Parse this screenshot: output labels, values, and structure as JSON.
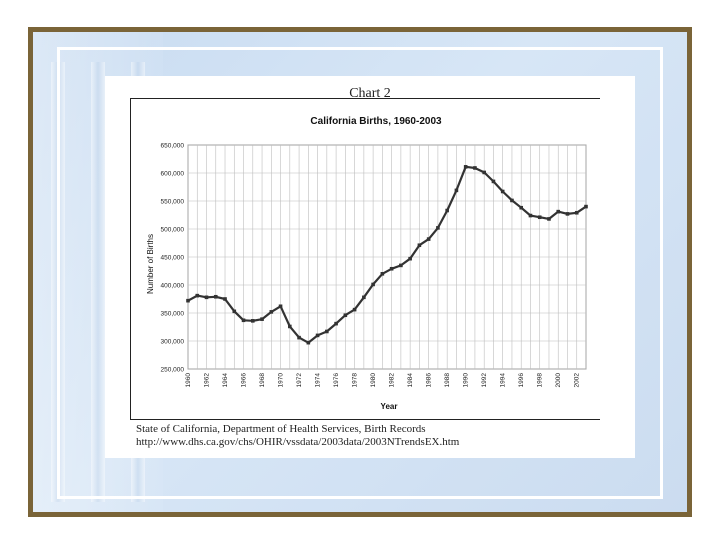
{
  "slide": {
    "title": "Chart 2",
    "source_line1": "State of California, Department of Health Services, Birth Records",
    "source_line2": "http://www.dhs.ca.gov/chs/OHIR/vssdata/2003data/2003NTrendsEX.htm"
  },
  "colors": {
    "frame": "#7a6438",
    "background": "#cfe0f3",
    "line": "#333333",
    "grid": "#bdbdbd"
  },
  "chart_data": {
    "type": "line",
    "title": "California Births, 1960-2003",
    "xlabel": "Year",
    "ylabel": "Number of Births",
    "ylim": [
      250000,
      650000
    ],
    "xlim": [
      1960,
      2003
    ],
    "grid": true,
    "y_ticks": [
      "650,000",
      "600,000",
      "550,000",
      "500,000",
      "450,000",
      "400,000",
      "350,000",
      "300,000",
      "250,000"
    ],
    "x_ticks": [
      "1960",
      "1962",
      "1964",
      "1966",
      "1968",
      "1970",
      "1972",
      "1974",
      "1976",
      "1978",
      "1980",
      "1982",
      "1984",
      "1986",
      "1988",
      "1990",
      "1992",
      "1994",
      "1996",
      "1998",
      "2000",
      "2002"
    ],
    "series": [
      {
        "x": [
          1960,
          1961,
          1962,
          1963,
          1964,
          1965,
          1966,
          1967,
          1968,
          1969,
          1970,
          1971,
          1972,
          1973,
          1974,
          1975,
          1976,
          1977,
          1978,
          1979,
          1980,
          1981,
          1982,
          1983,
          1984,
          1985,
          1986,
          1987,
          1988,
          1989,
          1990,
          1991,
          1992,
          1993,
          1994,
          1995,
          1996,
          1997,
          1998,
          1999,
          2000,
          2001,
          2002,
          2003
        ],
        "values": [
          372000,
          381000,
          378000,
          379000,
          375000,
          353000,
          337000,
          336000,
          339000,
          352000,
          362000,
          326000,
          306000,
          297000,
          310000,
          317000,
          331000,
          346000,
          356000,
          378000,
          401000,
          420000,
          429000,
          435000,
          447000,
          471000,
          482000,
          502000,
          533000,
          569000,
          611000,
          609000,
          601000,
          585000,
          567000,
          551000,
          538000,
          524000,
          521000,
          518000,
          531000,
          527000,
          529000,
          540000
        ]
      }
    ]
  }
}
